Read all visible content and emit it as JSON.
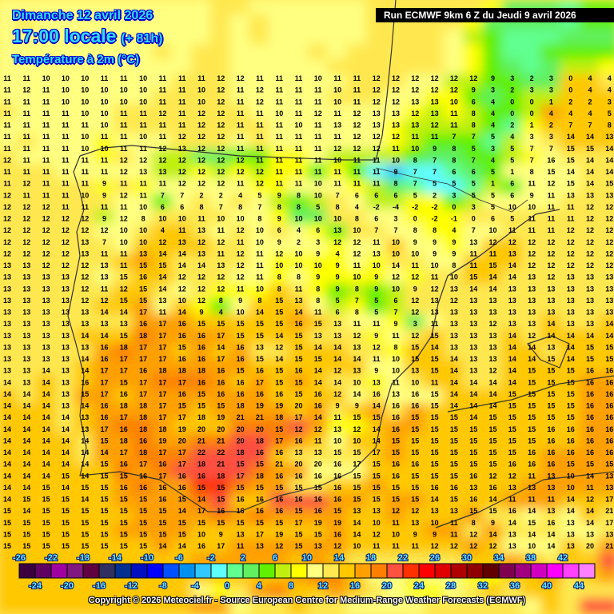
{
  "header": {
    "date": "Dimanche 12 avril 2026",
    "time": "17:00 locale",
    "lead": "(+ 81h)",
    "variable": "Température à 2m (°C)"
  },
  "run_banner": "Run ECMWF 9km 6 Z du Jeudi 9 avril 2026",
  "copyright": "Copyright © 2026 Meteociel.fr - Source European Centre for Medium-Range Weather Forecasts (ECMWF)",
  "legend": {
    "values": [
      -26,
      -24,
      -22,
      -20,
      -18,
      -16,
      -14,
      -12,
      -10,
      -8,
      -6,
      -4,
      -2,
      0,
      2,
      4,
      6,
      8,
      10,
      12,
      14,
      16,
      18,
      20,
      22,
      24,
      26,
      28,
      30,
      32,
      34,
      36,
      38,
      40,
      42,
      44
    ],
    "colors": [
      "#3c0040",
      "#600060",
      "#a000a0",
      "#801880",
      "#600040",
      "#303060",
      "#003090",
      "#0010c0",
      "#0000ff",
      "#0050ff",
      "#0090f0",
      "#30c8ff",
      "#60ffff",
      "#60ff90",
      "#60f060",
      "#60f000",
      "#c0f010",
      "#ffff00",
      "#ffff80",
      "#ffe850",
      "#ffc800",
      "#ffa000",
      "#ff8000",
      "#ff5040",
      "#ff3000",
      "#ff0000",
      "#e00000",
      "#b00000",
      "#900000",
      "#600000",
      "#800050",
      "#a00080",
      "#d000c0",
      "#ff00ff",
      "#ff40ff",
      "#ff80ff"
    ]
  },
  "temperature_grid": [
    "11 11 10 10 10 11 11 10 11 11 11 12 12 11 11 11 10 11 11 12 12 12 12 12 12 9 3 2 3 0 4 4",
    "11 12 11 10 10 10 10 10 11 11 10 12 11 12 11 11 11 10 11 12 12 12 12 12 9 3 2 3 3 0 4 4",
    "11 11 11 10 10 10 10 10 11 11 10 12 11 12 11 11 11 10 11 12 12 13 13 10 6 4 0 0 1 2 2 3",
    "11 11 11 11 10 10 11 11 12 11 12 12 11 11 10 11 12 11 12 13 13 12 13 11 8 4 0 0 4 4 4 5",
    "11 11 11 11 11 10 11 11 11 11 12 12 11 11 11 10 11 13 12 13 13 13 12 11 8 4 2 1 2 7 7 8",
    "11 11 11 11 10 11 11 10 11 12 12 12 11 11 11 11 11 11 12 12 12 11 11 7 7 5 4 3 3 14 14 13",
    "11 11 11 11 10 10 11 11 12 13 12 12 11 11 11 11 11 12 12 12 11 10 9 8 5 3 5 7 7 15 15 14",
    "12 11 11 11 11 11 12 12 12 12 12 12 12 11 11 11 11 10 11 11 10 8 7 8 7 4 5 7 16 15 14 14",
    "11 11 11 11 11 11 12 13 13 12 12 12 12 12 11 11 11 11 11 11 9 7 7 6 6 5 1 8 15 14 14 14",
    "11 12 11 11 11 9 11 11 11 12 12 12 11 12 11 11 10 11 11 11 8 7 5 5 5 1 6 11 12 15 14 15",
    "12 11 11 11 10 9 12 11 7 7 2 2 4 5 9 8 10 7 6 6 6 5 2 3 5 5 6 9 11 13 13 13",
    "12 12 12 11 11 11 11 10 6 6 8 7 8 7 8 8 5 8 4 -2 -4 -2 -2 0 3 5 10 10 11 11 12 12",
    "12 12 12 12 12 9 12 8 10 10 11 10 10 8 9 10 10 10 8 6 3 0 -2 -1 0 6 5 11 11 11 12 12",
    "12 12 12 12 12 12 10 10 4 11 13 11 12 10 6 4 6 13 10 7 7 8 8 4 7 10 11 11 11 12 12 12",
    "12 12 12 12 13 7 10 10 12 13 12 12 11 10 9 2 3 12 12 11 10 9 9 9 13 12 12 12 12 12 12 12",
    "12 12 12 12 13 11 11 13 14 14 13 11 12 11 12 10 9 4 12 13 10 10 9 9 11 11 13 12 12 12 12 12",
    "13 13 12 12 12 13 11 15 15 14 14 13 12 11 10 10 10 9 11 10 14 11 10 8 11 15 14 12 12 12 12 12",
    "13 13 13 13 12 13 15 16 14 12 12 12 12 11 8 8 9 9 10 9 12 12 11 10 15 14 14 13 12 13 13 13",
    "13 13 13 13 12 11 12 15 14 12 12 12 11 10 8 11 8 9 8 9 10 9 12 13 14 14 13 13 13 13 13 13",
    "13 13 13 13 12 12 15 15 13 10 12 8 9 8 15 13 8 5 7 5 6 12 13 12 13 13 13 13 13 13 13 13",
    "13 13 13 13 13 14 14 17 11 14 9 4 10 14 15 14 11 6 8 5 7 12 13 13 13 13 13 13 13 13 13 13",
    "13 13 13 13 13 13 13 16 17 16 15 15 15 15 15 16 15 13 11 11 9 3 11 13 13 12 13 13 14 13 13 14",
    "13 13 13 13 14 14 15 18 17 16 16 17 15 15 14 15 13 13 12 9 11 12 15 13 13 13 14 12 14 14 14 14",
    "13 13 13 13 13 16 18 17 17 15 16 14 16 13 12 15 14 14 13 12 8 15 14 13 13 13 14 14 13 14 15 15",
    "13 13 13 13 14 16 17 17 17 16 16 17 16 15 14 15 15 14 14 11 10 15 15 14 13 13 14 14 15 14 15 15",
    "13 13 14 13 14 17 17 16 18 18 18 16 15 16 15 16 14 12 13 9 10 13 15 14 13 12 14 15 15 15 16 16",
    "14 13 14 13 16 17 15 17 17 17 16 16 16 17 15 15 14 14 10 13 11 10 11 14 14 14 14 15 15 15 16 16",
    "14 14 14 13 15 17 16 17 17 16 15 16 16 16 16 15 16 12 14 16 13 16 15 14 14 14 15 15 15 15 16 16",
    "14 14 14 13 14 16 18 18 17 15 15 15 18 19 19 20 16 9 9 14 16 16 15 14 14 14 15 15 15 15 16 16",
    "14 14 14 14 13 16 17 18 17 17 18 19 21 21 18 17 14 11 15 15 16 15 15 15 14 15 15 15 15 15 16 16",
    "14 14 14 14 13 17 16 18 18 19 20 20 20 20 15 12 12 13 12 14 16 15 15 15 15 15 15 15 16 16 16 16",
    "14 14 14 14 14 15 18 16 19 20 21 21 20 18 17 16 11 10 10 14 15 15 15 15 15 15 15 15 16 16 16 16",
    "14 14 14 14 14 14 17 18 17 17 22 22 18 16 16 13 13 15 15 17 15 15 15 15 15 15 15 16 16 16 16 16",
    "14 14 14 14 14 15 16 17 16 17 18 21 15 15 21 20 20 16 17 15 16 16 15 15 15 15 16 16 16 15 15 15",
    "14 14 14 15 14 15 15 16 17 16 16 18 17 18 16 16 16 16 15 15 16 15 15 15 16 12 12 11 13 10 14 13",
    "14 14 15 14 15 15 16 16 16 16 15 15 15 15 15 15 15 16 15 15 15 15 16 16 13 16 13 13 13 10 11 13",
    "14 15 15 15 14 15 15 15 16 15 14 15 16 16 16 16 16 16 15 15 15 15 14 15 16 14 11 11 11 14 12 17",
    "15 14 15 15 15 15 15 15 15 14 17 16 16 16 16 15 16 15 13 13 12 12 13 13 15 15 16 14 13 14 14 21",
    "15 15 15 15 15 15 15 15 15 15 15 15 15 15 15 17 19 19 14 10 11 13 10 11 8 9 14 15 16 13 14 17",
    "15 15 15 15 15 15 15 15 15 15 10 9 13 17 19 15 15 16 14 12 10 9 9 11 12 14 13 14 14 13 13 13",
    "15 15 15 15 15 15 15 15 14 14 16 17 11 13 12 15 13 12 10 11 11 11 12 12 12 12 13 10 14 13 20 21"
  ]
}
